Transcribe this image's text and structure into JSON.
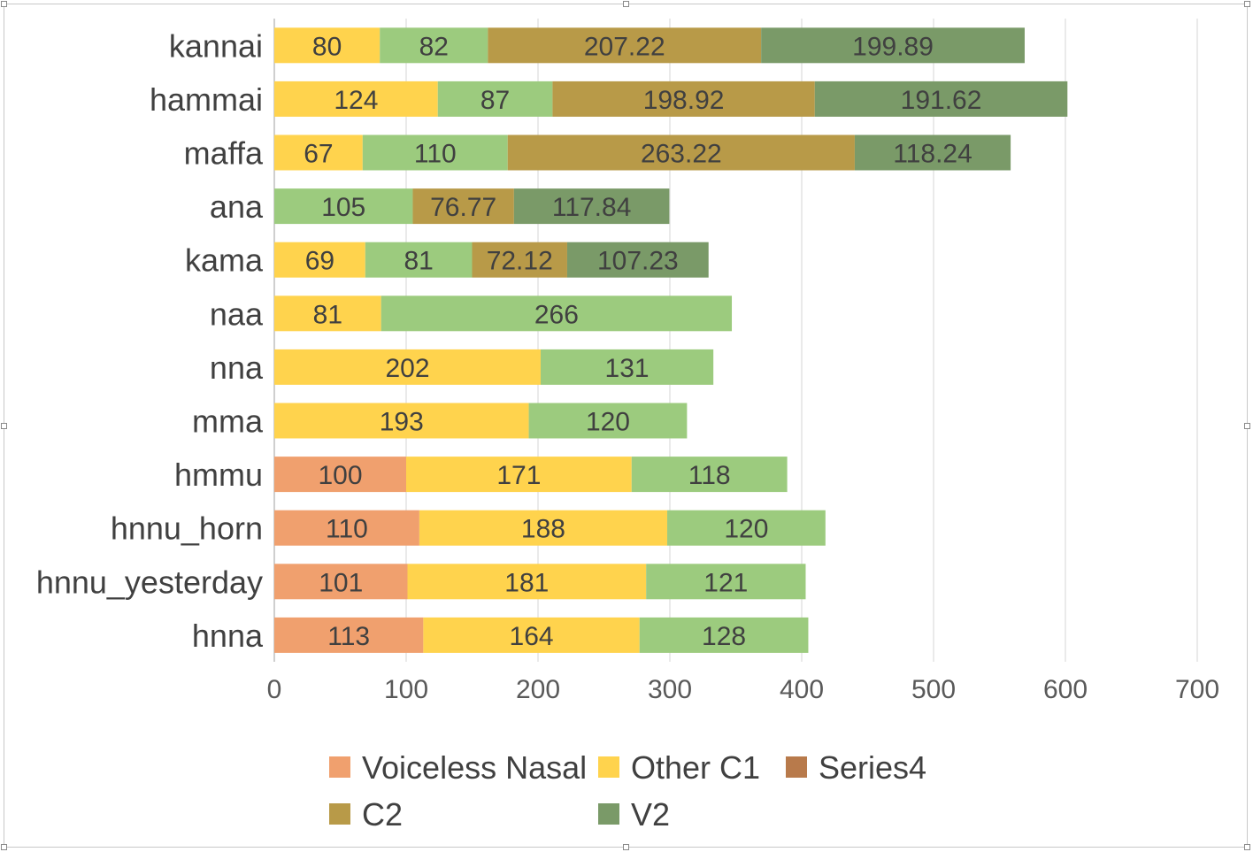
{
  "chart_data": {
    "type": "bar",
    "orientation": "horizontal",
    "stacked": true,
    "title": "",
    "xlabel": "",
    "ylabel": "",
    "xlim": [
      0,
      700
    ],
    "x_ticks": [
      0,
      100,
      200,
      300,
      400,
      500,
      600,
      700
    ],
    "grid": true,
    "legend_position": "bottom",
    "categories": [
      "kannai",
      "hammai",
      "maffa",
      "ana",
      "kama",
      "naa",
      "nna",
      "mma",
      "hmmu",
      "hnnu_horn",
      "hnnu_yesterday",
      "hnna"
    ],
    "series": [
      {
        "name": "Voiceless Nasal",
        "color": "#f0a06e",
        "values": [
          null,
          null,
          null,
          null,
          null,
          null,
          null,
          null,
          100,
          110,
          101,
          113
        ]
      },
      {
        "name": "Other C1",
        "color": "#ffd34d",
        "values": [
          80,
          124,
          67,
          null,
          69,
          81,
          202,
          193,
          171,
          188,
          181,
          164
        ]
      },
      {
        "name": "Series4",
        "color": "#b87a4b",
        "values": [
          82,
          87,
          110,
          105,
          81,
          266,
          131,
          120,
          118,
          120,
          121,
          128
        ],
        "bar_color": "#9ccb7e"
      },
      {
        "name": "C2",
        "color": "#b89a48",
        "values": [
          207.22,
          198.92,
          263.22,
          76.77,
          72.12,
          null,
          null,
          null,
          null,
          null,
          null,
          null
        ]
      },
      {
        "name": "V2",
        "color": "#7a9a68",
        "values": [
          199.89,
          191.62,
          118.24,
          117.84,
          107.23,
          null,
          null,
          null,
          null,
          null,
          null,
          null
        ]
      }
    ]
  }
}
